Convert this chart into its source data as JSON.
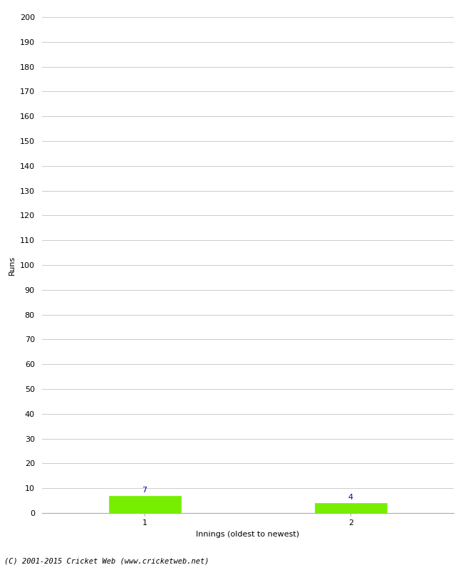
{
  "xlabel": "Innings (oldest to newest)",
  "ylabel": "Runs",
  "categories": [
    1,
    2
  ],
  "values": [
    7,
    4
  ],
  "bar_color": "#77ee00",
  "bar_label_color": "#0000cc",
  "ylim": [
    0,
    200
  ],
  "ytick_step": 10,
  "background_color": "#ffffff",
  "grid_color": "#cccccc",
  "footnote": "(C) 2001-2015 Cricket Web (www.cricketweb.net)",
  "bar_width": 0.35
}
